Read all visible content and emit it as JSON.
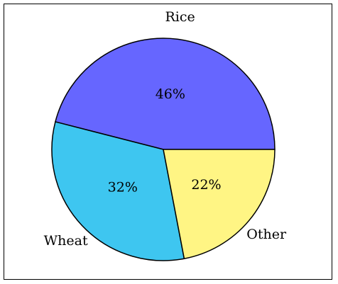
{
  "chart_data": {
    "type": "pie",
    "title": "",
    "categories": [
      "Rice",
      "Wheat",
      "Other"
    ],
    "values": [
      46,
      32,
      22
    ],
    "value_labels": [
      "46%",
      "32%",
      "22%"
    ],
    "colors": [
      "#6666ff",
      "#3ec6f0",
      "#fff584"
    ],
    "start_angle_deg": 0,
    "direction": "counterclockwise",
    "legend": "none",
    "edge_color": "#000000"
  }
}
